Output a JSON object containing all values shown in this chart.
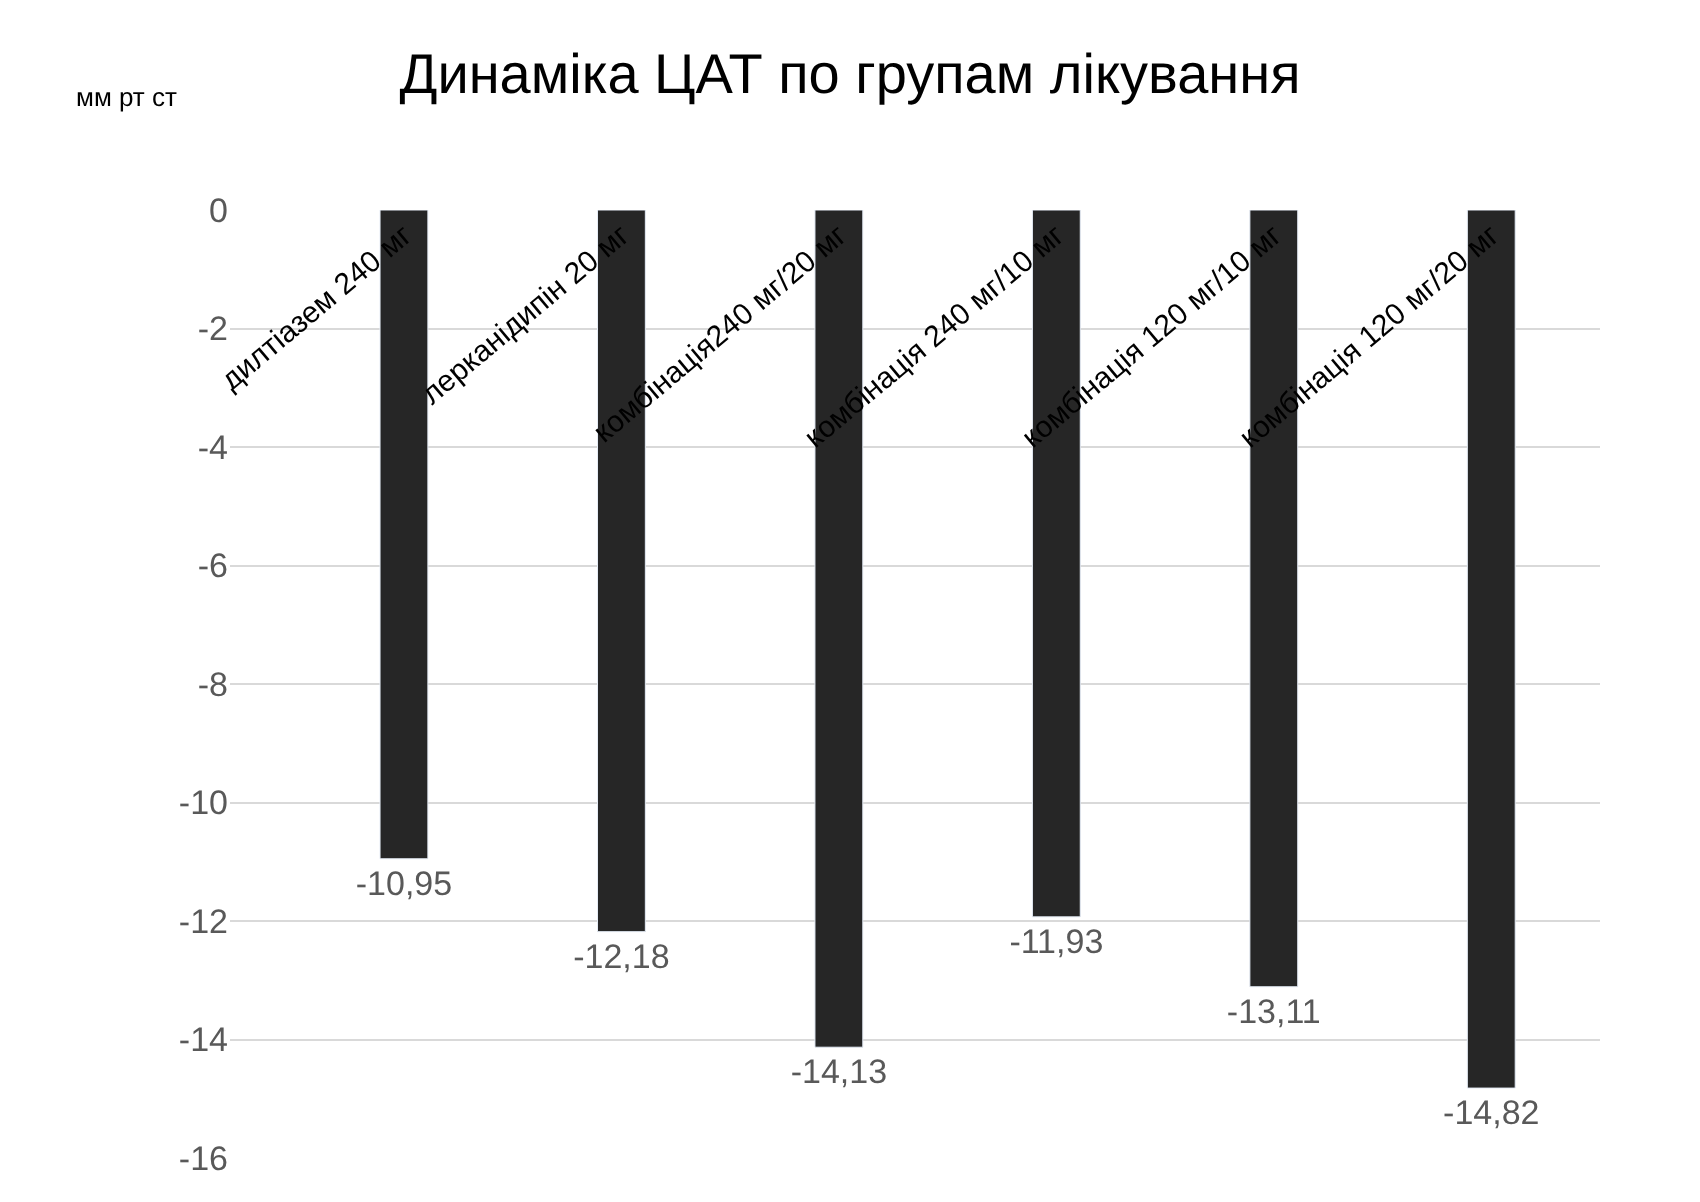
{
  "chart_data": {
    "type": "bar",
    "title": "Динаміка ЦАТ по групам лікування",
    "ylabel": "мм рт ст",
    "categories": [
      "дилтіазем 240 мг",
      "лерканідипін 20 мг",
      "комбінація240 мг/20 мг",
      "комбінація 240 мг/10 мг",
      "комбінація 120 мг/10 мг",
      "комбінація 120 мг/20 мг"
    ],
    "values": [
      -10.95,
      -12.18,
      -14.13,
      -11.93,
      -13.11,
      -14.82
    ],
    "value_labels": [
      "-10,95",
      "-12,18",
      "-14,13",
      "-11,93",
      "-13,11",
      "-14,82"
    ],
    "color": "#262626",
    "ylim": [
      -16,
      0
    ],
    "yticks": [
      0,
      -2,
      -4,
      -6,
      -8,
      -10,
      -12,
      -14,
      -16
    ],
    "grid": "y"
  }
}
